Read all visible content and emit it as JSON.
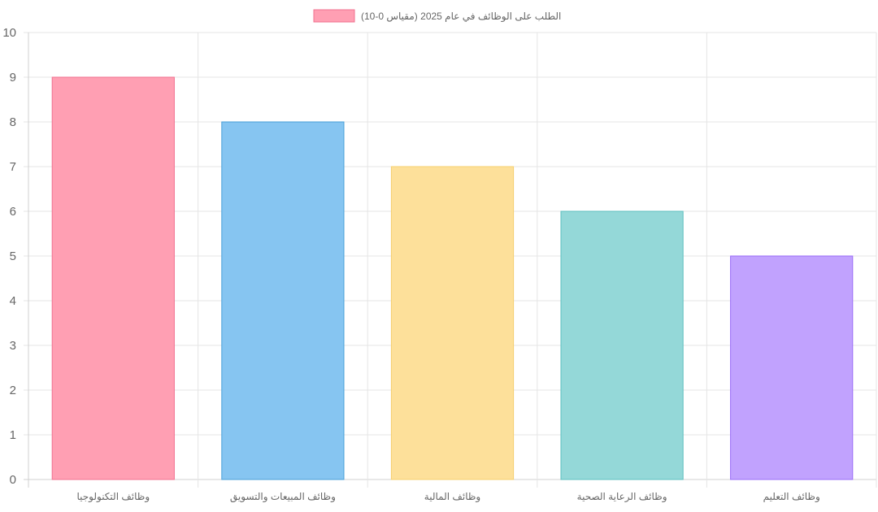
{
  "chart_data": {
    "type": "bar",
    "categories": [
      "وظائف التكنولوجيا",
      "وظائف المبيعات والتسويق",
      "وظائف المالية",
      "وظائف الرعاية الصحية",
      "وظائف التعليم"
    ],
    "series": [
      {
        "name": "الطلب على الوظائف في عام 2025 (مقياس 0-10)",
        "values": [
          9,
          8,
          7,
          6,
          5
        ]
      }
    ],
    "ylim": [
      0,
      10
    ],
    "yticks": [
      "0",
      "1",
      "2",
      "3",
      "4",
      "5",
      "6",
      "7",
      "8",
      "9",
      "10"
    ],
    "grid": true,
    "legend_position": "top",
    "colors": {
      "fills": [
        "#ff9fb3",
        "#86c5f1",
        "#fde09a",
        "#94d8d8",
        "#c1a2fe"
      ],
      "borders": [
        "#f0708f",
        "#4aa0d8",
        "#f6cf6e",
        "#5cbfbf",
        "#9a6cf7"
      ],
      "legend_fill": "#ff9fb3",
      "legend_border": "#f0708f"
    }
  }
}
